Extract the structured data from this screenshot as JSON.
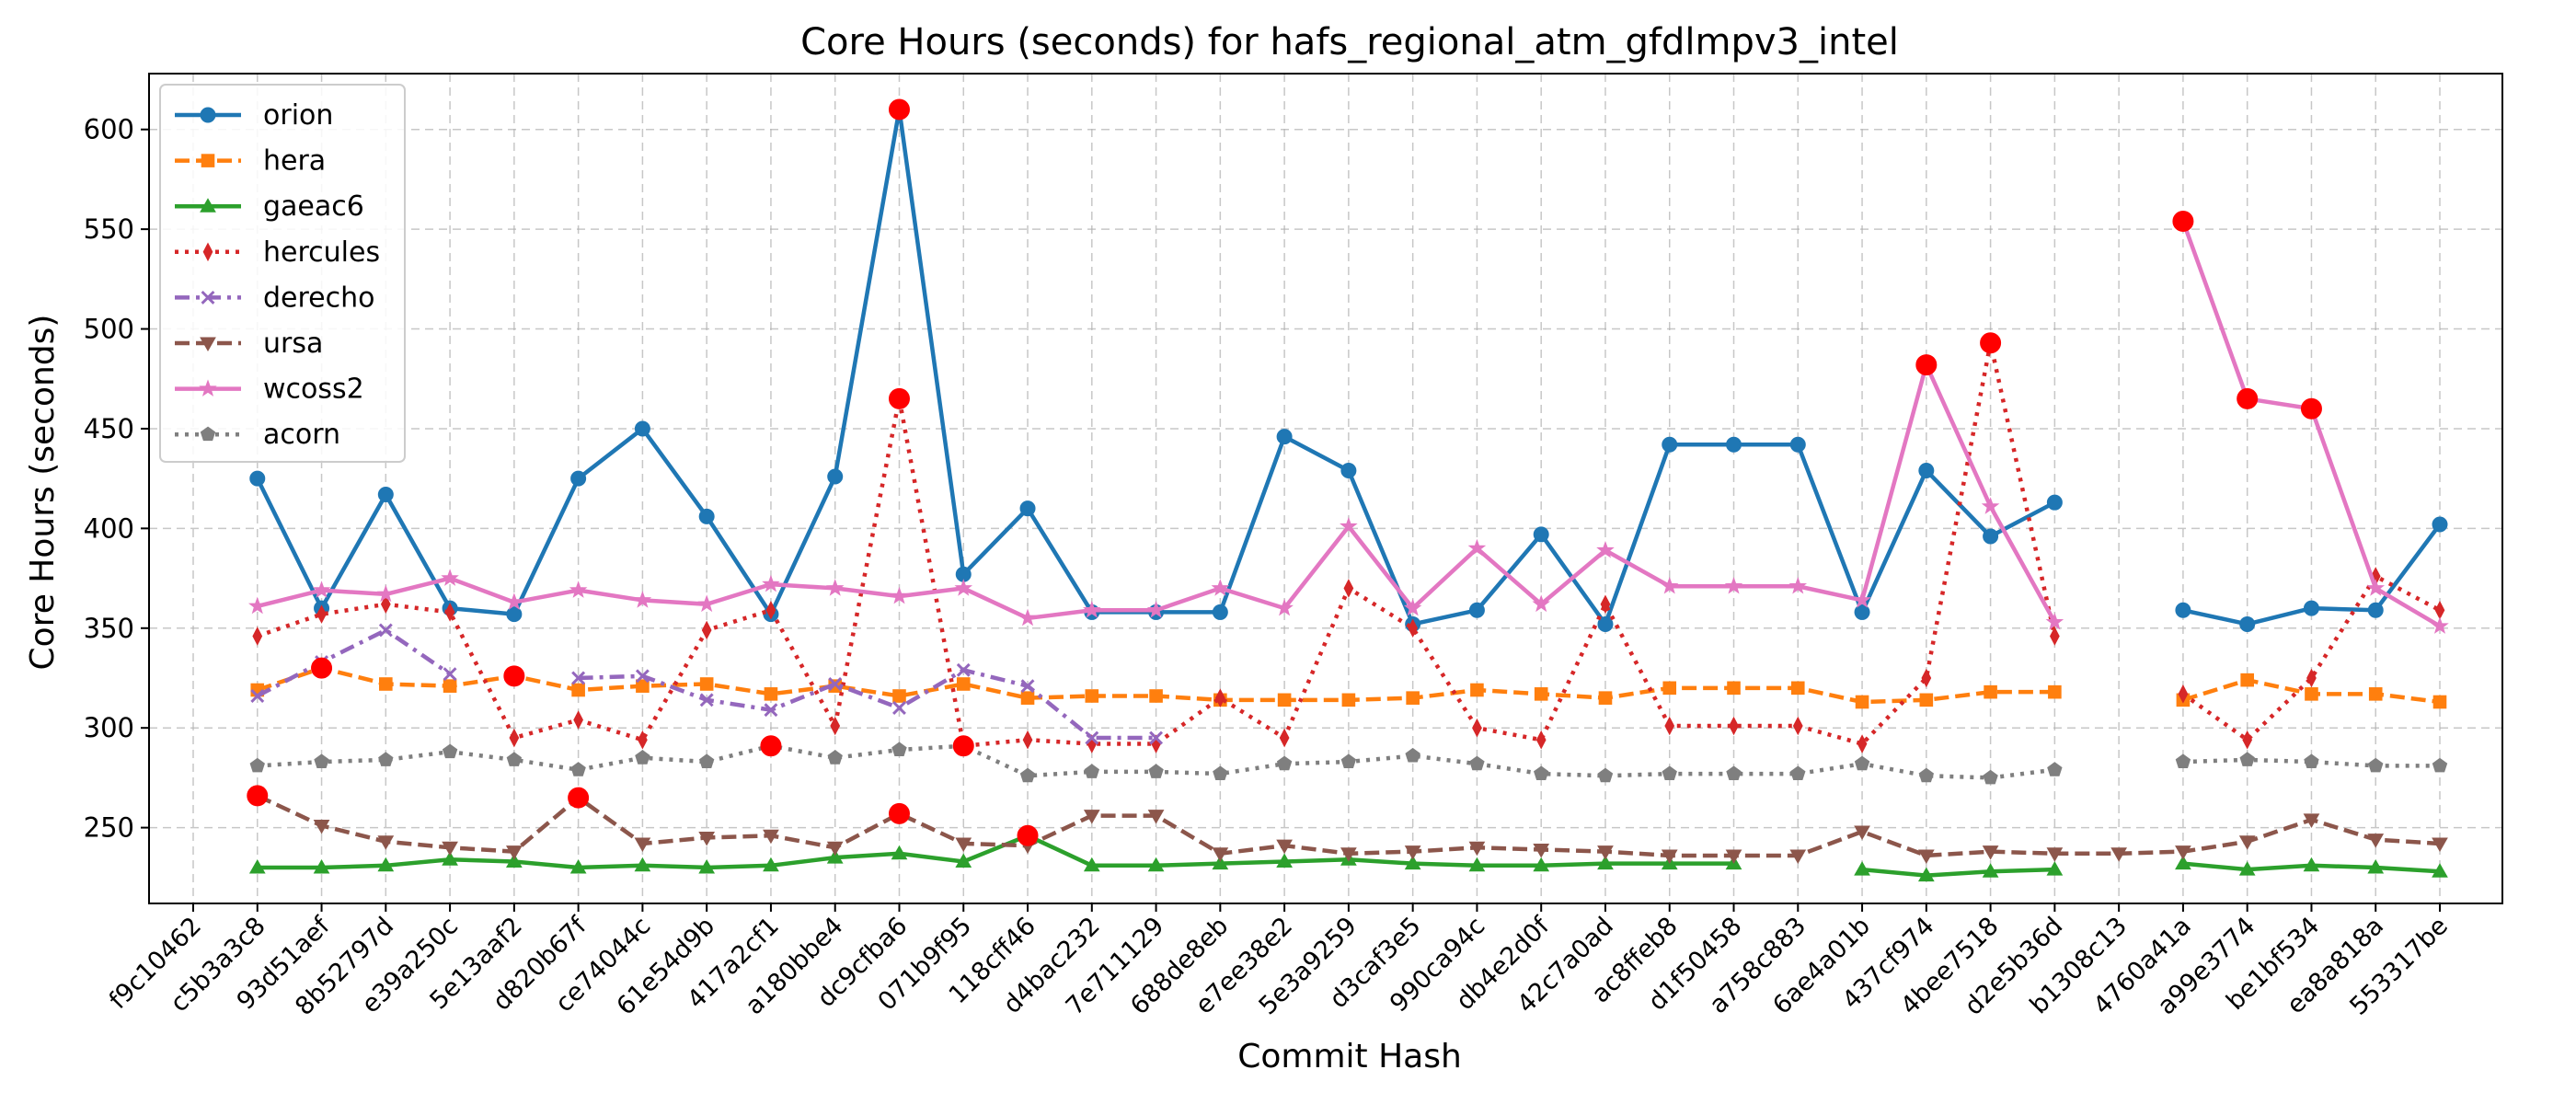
{
  "chart_data": {
    "type": "line",
    "title": "Core Hours (seconds) for hafs_regional_atm_gfdlmpv3_intel",
    "xlabel": "Commit Hash",
    "ylabel": "Core Hours (seconds)",
    "ylim": [
      212,
      628
    ],
    "yticks": [
      250,
      300,
      350,
      400,
      450,
      500,
      550,
      600
    ],
    "grid": true,
    "legend_position": "top-left",
    "categories": [
      "f9c10462",
      "c5b3a3c8",
      "93d51aef",
      "8b52797d",
      "e39a250c",
      "5e13aaf2",
      "d820b67f",
      "ce74044c",
      "61e54d9b",
      "417a2cf1",
      "a180bbe4",
      "dc9cfba6",
      "071b9f95",
      "118cff46",
      "d4bac232",
      "7e711129",
      "688de8eb",
      "e7ee38e2",
      "5e3a9259",
      "d3caf3e5",
      "990ca94c",
      "db4e2d0f",
      "42c7a0ad",
      "ac8ffeb8",
      "d1f50458",
      "a758c883",
      "6ae4a01b",
      "437cf974",
      "4bee7518",
      "d2e5b36d",
      "b1308c13",
      "4760a41a",
      "a99e3774",
      "be1bf534",
      "ea8a818a",
      "553317be"
    ],
    "series": [
      {
        "name": "orion",
        "color": "#1f77b4",
        "marker": "circle",
        "dash": "solid",
        "values": [
          null,
          425,
          360,
          417,
          360,
          357,
          425,
          450,
          406,
          357,
          426,
          610,
          377,
          410,
          358,
          358,
          358,
          446,
          429,
          352,
          359,
          397,
          352,
          442,
          442,
          442,
          358,
          429,
          396,
          413,
          null,
          359,
          352,
          360,
          359,
          402
        ]
      },
      {
        "name": "hera",
        "color": "#ff7f0e",
        "marker": "square",
        "dash": "dashed",
        "values": [
          null,
          319,
          330,
          322,
          321,
          326,
          319,
          321,
          322,
          317,
          321,
          316,
          322,
          315,
          316,
          316,
          314,
          314,
          314,
          315,
          319,
          317,
          315,
          320,
          320,
          320,
          313,
          314,
          318,
          318,
          null,
          314,
          324,
          317,
          317,
          313
        ]
      },
      {
        "name": "gaeac6",
        "color": "#2ca02c",
        "marker": "triangle-up",
        "dash": "solid",
        "values": [
          null,
          230,
          230,
          231,
          234,
          233,
          230,
          231,
          230,
          231,
          235,
          237,
          233,
          246,
          231,
          231,
          232,
          233,
          234,
          232,
          231,
          231,
          232,
          232,
          232,
          null,
          229,
          226,
          228,
          229,
          null,
          232,
          229,
          231,
          230,
          228
        ]
      },
      {
        "name": "hercules",
        "color": "#d62728",
        "marker": "thin-diamond",
        "dash": "dotted",
        "values": [
          null,
          346,
          357,
          362,
          358,
          295,
          304,
          294,
          349,
          359,
          301,
          465,
          291,
          294,
          292,
          292,
          315,
          295,
          370,
          350,
          300,
          294,
          362,
          301,
          301,
          301,
          292,
          325,
          493,
          346,
          null,
          317,
          294,
          325,
          376,
          359
        ]
      },
      {
        "name": "derecho",
        "color": "#9467bd",
        "marker": "x",
        "dash": "dashdot",
        "values": [
          null,
          316,
          333,
          349,
          327,
          null,
          325,
          326,
          314,
          309,
          322,
          310,
          329,
          321,
          295,
          295,
          null,
          null,
          null,
          null,
          null,
          null,
          null,
          null,
          null,
          null,
          null,
          null,
          null,
          null,
          null,
          null,
          null,
          null,
          null,
          null
        ]
      },
      {
        "name": "ursa",
        "color": "#8c564b",
        "marker": "triangle-down",
        "dash": "dashed",
        "values": [
          null,
          266,
          251,
          243,
          240,
          238,
          265,
          242,
          245,
          246,
          240,
          257,
          242,
          241,
          256,
          256,
          237,
          241,
          237,
          238,
          240,
          239,
          238,
          236,
          236,
          236,
          248,
          236,
          238,
          237,
          237,
          238,
          243,
          254,
          244,
          242
        ]
      },
      {
        "name": "wcoss2",
        "color": "#e377c2",
        "marker": "star",
        "dash": "solid",
        "values": [
          null,
          361,
          369,
          367,
          375,
          363,
          369,
          364,
          362,
          372,
          370,
          366,
          370,
          355,
          359,
          359,
          370,
          360,
          401,
          360,
          390,
          362,
          389,
          371,
          371,
          371,
          364,
          482,
          411,
          353,
          null,
          554,
          465,
          460,
          370,
          351
        ]
      },
      {
        "name": "acorn",
        "color": "#7f7f7f",
        "marker": "pentagon",
        "dash": "dotted",
        "values": [
          null,
          281,
          283,
          284,
          288,
          284,
          279,
          285,
          283,
          291,
          285,
          289,
          291,
          276,
          278,
          278,
          277,
          282,
          283,
          286,
          282,
          277,
          276,
          277,
          277,
          277,
          282,
          276,
          275,
          279,
          null,
          283,
          284,
          283,
          281,
          281
        ]
      }
    ],
    "highlight_color": "#ff0000",
    "highlights": [
      {
        "x": "c5b3a3c8",
        "y": 266
      },
      {
        "x": "93d51aef",
        "y": 330
      },
      {
        "x": "5e13aaf2",
        "y": 326
      },
      {
        "x": "d820b67f",
        "y": 265
      },
      {
        "x": "417a2cf1",
        "y": 291
      },
      {
        "x": "dc9cfba6",
        "y": 610
      },
      {
        "x": "dc9cfba6",
        "y": 465
      },
      {
        "x": "dc9cfba6",
        "y": 257
      },
      {
        "x": "071b9f95",
        "y": 291
      },
      {
        "x": "118cff46",
        "y": 246
      },
      {
        "x": "437cf974",
        "y": 482
      },
      {
        "x": "4bee7518",
        "y": 493
      },
      {
        "x": "4760a41a",
        "y": 554
      },
      {
        "x": "a99e3774",
        "y": 465
      },
      {
        "x": "be1bf534",
        "y": 460
      }
    ]
  }
}
